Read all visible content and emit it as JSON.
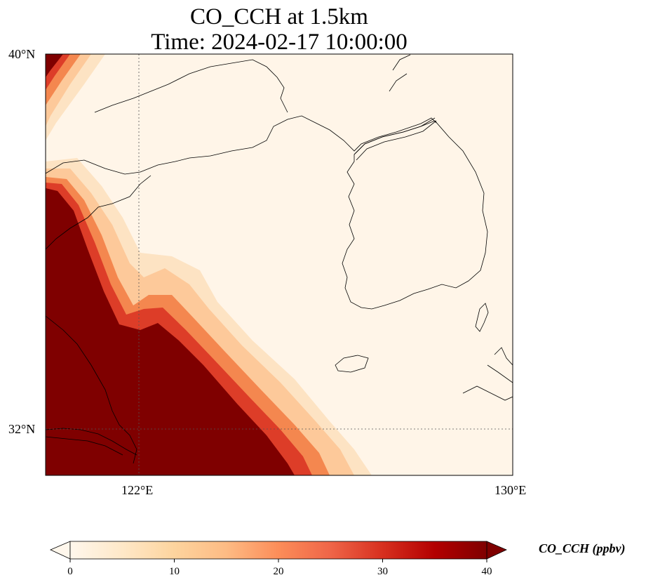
{
  "title_line1": "CO_CCH at 1.5km",
  "title_line2": "Time: 2024-02-17 10:00:00",
  "map": {
    "lon_range": [
      120.4,
      130.0
    ],
    "lat_range": [
      31.0,
      40.0
    ],
    "lon_ticks": [
      "122°E",
      "130°E"
    ],
    "lat_ticks": [
      "40°N",
      "32°N"
    ],
    "gridlines": "dotted",
    "features": [
      "coastline",
      "borders"
    ]
  },
  "colorbar": {
    "label": "CO_CCH (ppbv)",
    "ticks": [
      "0",
      "10",
      "20",
      "30",
      "40"
    ],
    "range": [
      0,
      40
    ],
    "extend": "both",
    "colormap": "OrRd",
    "colors": [
      "#fff7ec",
      "#fee8c8",
      "#fdd49e",
      "#fdbb84",
      "#fc8d59",
      "#ef6548",
      "#d7301f",
      "#b30000",
      "#7f0000"
    ]
  }
}
